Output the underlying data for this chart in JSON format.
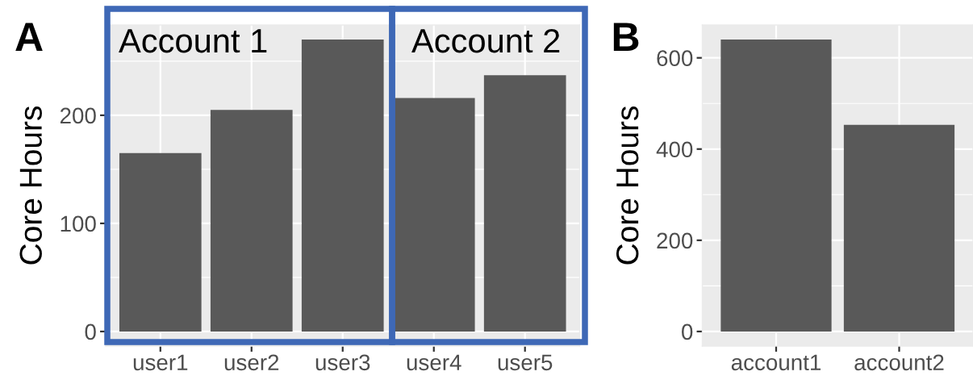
{
  "chart_data": [
    {
      "type": "bar",
      "title": "A",
      "ylabel": "Core Hours",
      "categories": [
        "user1",
        "user2",
        "user3",
        "user4",
        "user5"
      ],
      "values": [
        165,
        205,
        270,
        216,
        237
      ],
      "color": "#595959",
      "ylim": [
        -13.5,
        283.5
      ],
      "yticks": [
        0,
        {
          "value": 50,
          "label": null
        },
        100,
        {
          "value": 150,
          "label": null
        },
        200,
        {
          "value": 250,
          "label": null
        }
      ],
      "grid": true,
      "annotations": [
        "Account 1",
        "Account 2"
      ]
    },
    {
      "type": "bar",
      "title": "B",
      "ylabel": "Core Hours",
      "categories": [
        "account1",
        "account2"
      ],
      "values": [
        640,
        453
      ],
      "color": "#595959",
      "ylim": [
        -32,
        672
      ],
      "yticks": [
        0,
        {
          "value": 100,
          "label": null
        },
        200,
        {
          "value": 300,
          "label": null
        },
        400,
        {
          "value": 500,
          "label": null
        },
        600
      ],
      "grid": true
    }
  ]
}
